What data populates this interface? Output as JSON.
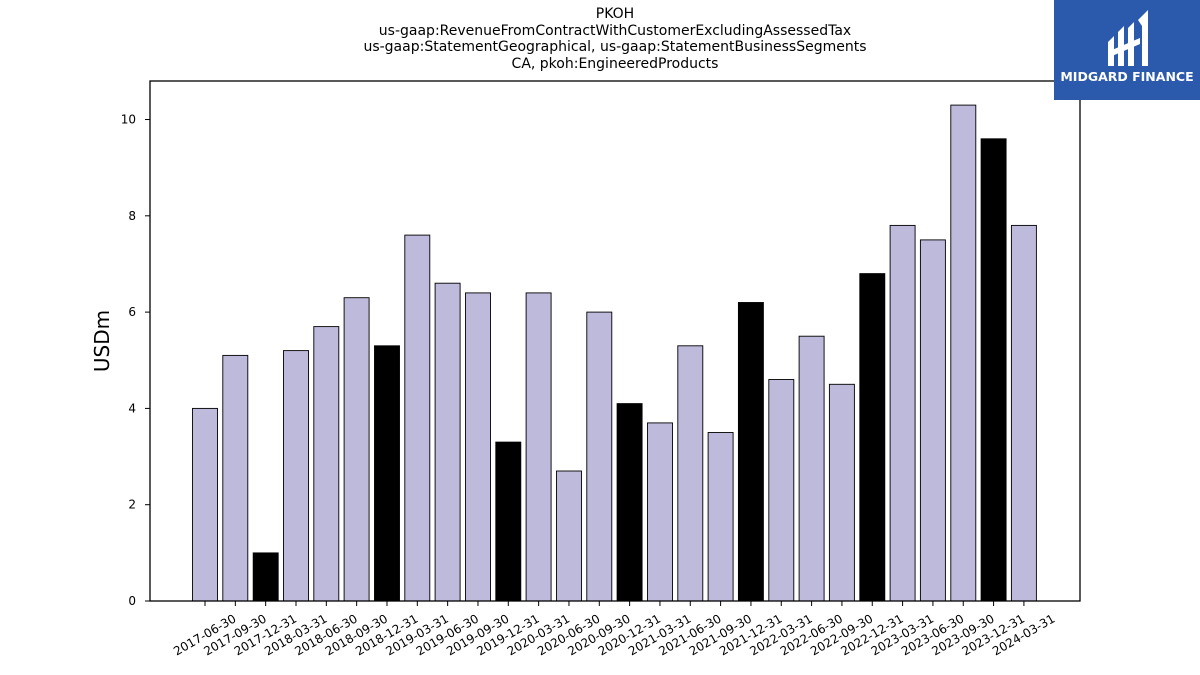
{
  "chart_data": {
    "type": "bar",
    "title_lines": [
      "PKOH",
      "us-gaap:RevenueFromContractWithCustomerExcludingAssessedTax",
      "us-gaap:StatementGeographical, us-gaap:StatementBusinessSegments",
      "CA, pkoh:EngineeredProducts"
    ],
    "ylabel": "USDm",
    "xlabel": "",
    "ylim": [
      0,
      10.8
    ],
    "yticks": [
      0,
      2,
      4,
      6,
      8,
      10
    ],
    "categories": [
      "2017-06-30",
      "2017-09-30",
      "2017-12-31",
      "2018-03-31",
      "2018-06-30",
      "2018-09-30",
      "2018-12-31",
      "2019-03-31",
      "2019-06-30",
      "2019-09-30",
      "2019-12-31",
      "2020-03-31",
      "2020-06-30",
      "2020-09-30",
      "2020-12-31",
      "2021-03-31",
      "2021-06-30",
      "2021-09-30",
      "2021-12-31",
      "2022-03-31",
      "2022-06-30",
      "2022-09-30",
      "2022-12-31",
      "2023-03-31",
      "2023-06-30",
      "2023-09-30",
      "2023-12-31",
      "2024-03-31"
    ],
    "values": [
      4.0,
      5.1,
      1.0,
      5.2,
      5.7,
      6.3,
      5.3,
      7.6,
      6.6,
      6.4,
      3.3,
      6.4,
      2.7,
      6.0,
      4.1,
      3.7,
      5.3,
      3.5,
      6.2,
      4.6,
      5.5,
      4.5,
      6.8,
      7.8,
      7.5,
      10.3,
      9.6,
      7.8
    ],
    "highlight": [
      false,
      false,
      true,
      false,
      false,
      false,
      true,
      false,
      false,
      false,
      true,
      false,
      false,
      false,
      true,
      false,
      false,
      false,
      true,
      false,
      false,
      false,
      true,
      false,
      false,
      false,
      true,
      false
    ],
    "colors": {
      "bar": "#bebadb",
      "highlight": "#000000",
      "edge": "#000000"
    },
    "grid": false,
    "legend": "none"
  },
  "logo": {
    "text": "MIDGARD FINANCE",
    "background": "#2b5aad"
  }
}
